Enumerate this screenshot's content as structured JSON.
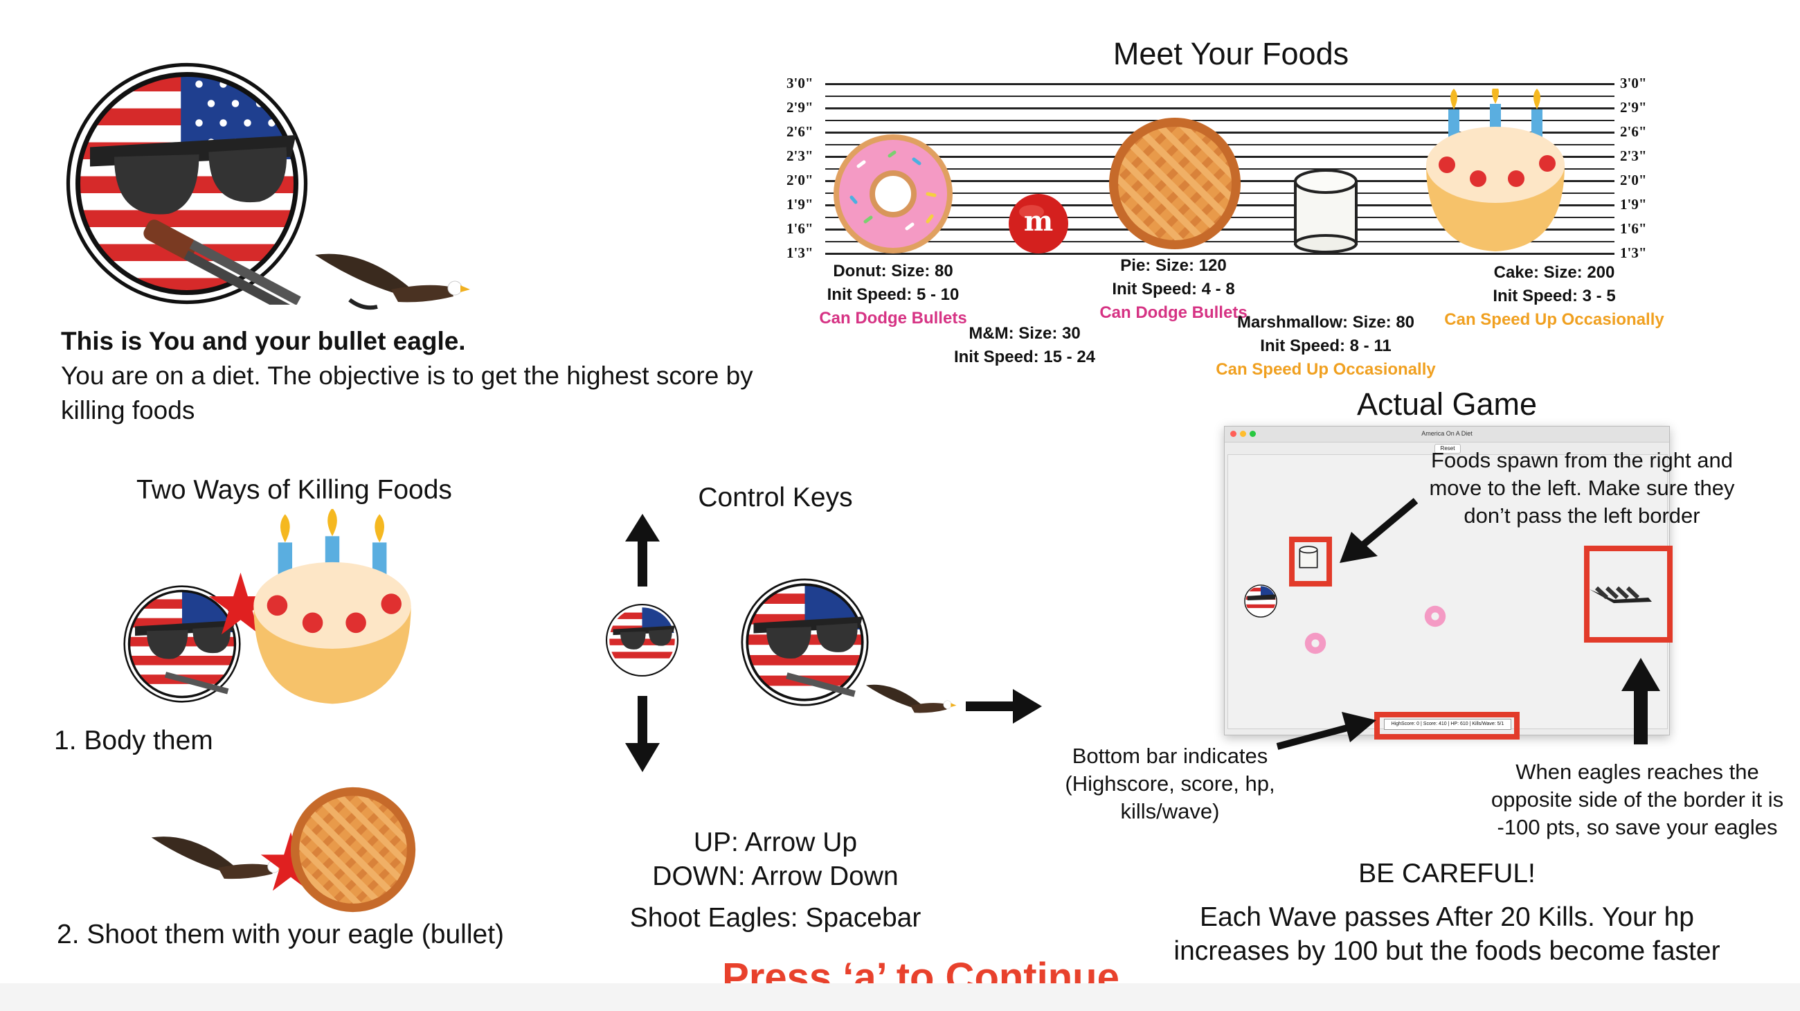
{
  "intro": {
    "title": "This is You and your bullet eagle.",
    "line1": "You are on a diet. The objective is to get the highest score by",
    "line2": "killing foods"
  },
  "foods_section": {
    "title": "Meet Your Foods",
    "ruler_labels": [
      "3'0\"",
      "2'9\"",
      "2'6\"",
      "2'3\"",
      "2'0\"",
      "1'9\"",
      "1'6\"",
      "1'3\""
    ],
    "donut": {
      "name": "Donut: Size: 80",
      "speed": "Init Speed: 5 - 10",
      "trait": "Can Dodge Bullets"
    },
    "mm": {
      "name": "M&M: Size: 30",
      "speed": "Init Speed: 15 - 24",
      "logo": "m"
    },
    "pie": {
      "name": "Pie: Size: 120",
      "speed": "Init Speed: 4 - 8",
      "trait": "Can Dodge Bullets"
    },
    "marshmallow": {
      "name": "Marshmallow: Size: 80",
      "speed": "Init Speed: 8 - 11",
      "trait": "Can Speed Up Occasionally"
    },
    "cake": {
      "name": "Cake: Size: 200",
      "speed": "Init Speed: 3 - 5",
      "trait": "Can Speed Up Occasionally"
    }
  },
  "killing": {
    "title": "Two Ways of Killing Foods",
    "way1": "1. Body them",
    "way2": "2. Shoot them with your eagle (bullet)"
  },
  "controls": {
    "title": "Control Keys",
    "up": "UP: Arrow Up",
    "down": "DOWN: Arrow Down",
    "shoot": "Shoot Eagles: Spacebar"
  },
  "actual_game": {
    "title": "Actual Game",
    "window_title": "America On A Diet",
    "reset_label": "Reset",
    "status_bar": "HighScore: 0 | Score: 410 | HP: 610 | Kills/Wave: 5/1",
    "spawn_note": [
      "Foods spawn from the right and",
      "move to the left. Make sure they",
      "don’t pass the left border"
    ],
    "bottom_note": [
      "Bottom bar indicates",
      "(Highscore, score, hp,",
      "kills/wave)"
    ],
    "eagle_note": [
      "When eagles reaches the",
      "opposite side of the border it is",
      "-100 pts, so save your eagles"
    ],
    "careful": "BE CAREFUL!",
    "wave_note": [
      "Each Wave passes After 20 Kills. Your hp",
      "increases by 100 but the foods become faster"
    ]
  },
  "continue_prompt": "Press ‘a’ to Continue",
  "colors": {
    "accent_red": "#e8412c",
    "pink": "#d63384",
    "orange": "#f0a020",
    "box_red": "#e23b2a"
  }
}
